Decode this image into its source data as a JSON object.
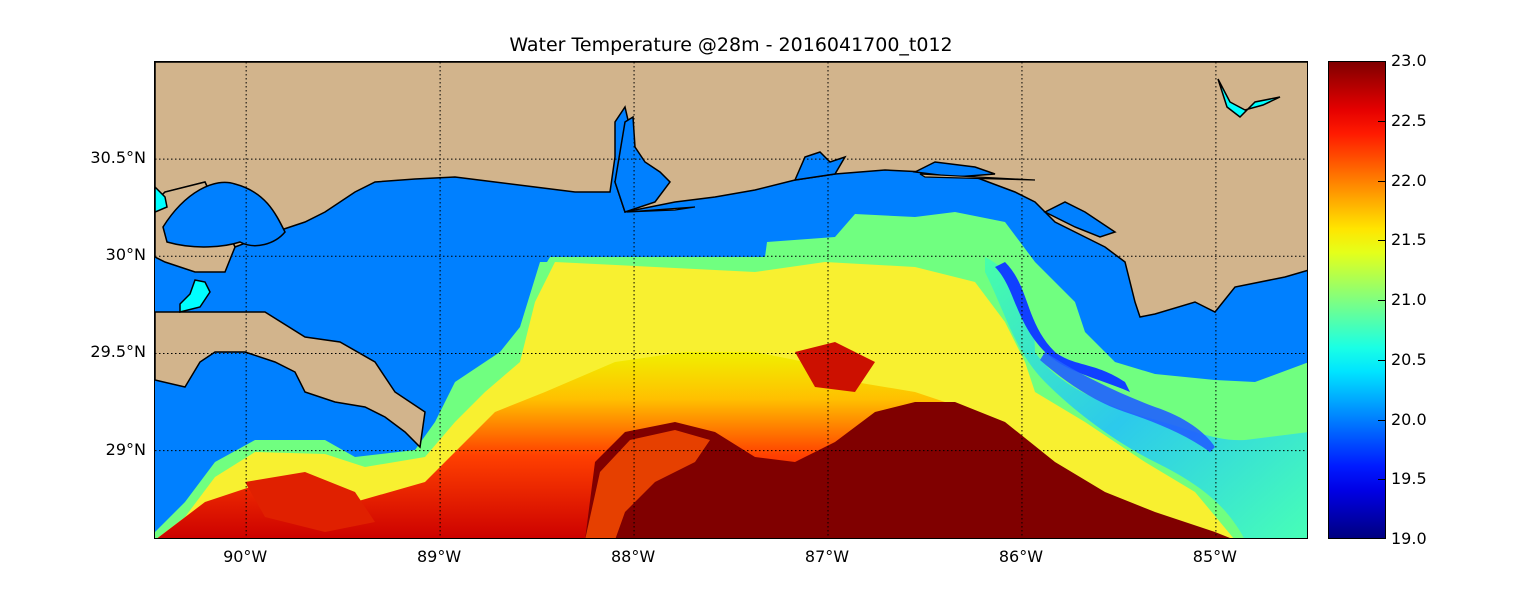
{
  "title": "Water Temperature @28m - 2016041700_t012",
  "colors": {
    "land": "#d2b48c",
    "water_unsampled": "#0080ff",
    "lake": "#00ffff",
    "gridline": "#000000"
  },
  "map": {
    "lat_labels": [
      "30.5°N",
      "30°N",
      "29.5°N",
      "29°N"
    ],
    "lon_labels": [
      "90°W",
      "89°W",
      "88°W",
      "87°W",
      "86°W",
      "85°W"
    ],
    "extent": {
      "lon_min": -90.47,
      "lon_max": -84.52,
      "lat_min": 28.54,
      "lat_max": 31.0
    },
    "grid_lats": [
      30.5,
      30.0,
      29.5,
      29.0
    ],
    "grid_lons": [
      -90,
      -89,
      -88,
      -87,
      -86,
      -85
    ],
    "grid_style": "dotted"
  },
  "colorbar": {
    "colormap": "jet",
    "min": 19.0,
    "max": 23.0,
    "tick_labels": [
      "23.0",
      "22.5",
      "22.0",
      "21.5",
      "21.0",
      "20.5",
      "20.0",
      "19.5",
      "19.0"
    ]
  }
}
